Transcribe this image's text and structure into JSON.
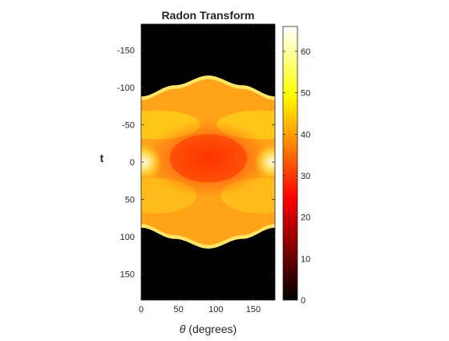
{
  "chart_data": {
    "type": "heatmap",
    "title": "Radon Transform",
    "xlabel_symbol": "θ",
    "xlabel_rest": " (degrees)",
    "ylabel": "t",
    "x_range": [
      0,
      179
    ],
    "y_range": [
      -185,
      185
    ],
    "y_reversed": true,
    "x_ticks": [
      0,
      50,
      100,
      150
    ],
    "y_ticks": [
      -150,
      -100,
      -50,
      0,
      50,
      100,
      150
    ],
    "colorbar": {
      "colormap": "hot",
      "range": [
        0,
        66
      ],
      "ticks": [
        0,
        10,
        20,
        30,
        40,
        50,
        60
      ]
    },
    "support_boundary": {
      "description": "half-width of nonzero region vs angle",
      "theta": [
        0,
        45,
        90,
        135,
        179
      ],
      "half_width": [
        88,
        103,
        116,
        103,
        88
      ]
    }
  }
}
